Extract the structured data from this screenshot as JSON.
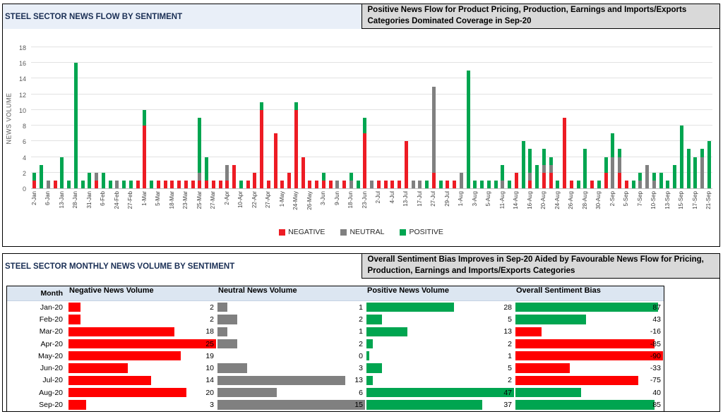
{
  "panel1": {
    "title": "STEEL SECTOR NEWS FLOW BY SENTIMENT",
    "headline": "Positive News Flow for Product Pricing, Production, Earnings and Imports/Exports Categories Dominated Coverage in Sep-20",
    "y_axis_label": "NEWS VOLUME"
  },
  "panel2": {
    "title": "STEEL SECTOR MONTHLY NEWS VOLUME BY SENTIMENT",
    "headline": "Overall Sentiment Bias Improves in Sep-20 Aided by Favourable News Flow for Pricing, Production, Earnings and Imports/Exports Categories"
  },
  "legend": [
    {
      "label": "NEGATIVE",
      "color": "#ed1c24"
    },
    {
      "label": "NEUTRAL",
      "color": "#808080"
    },
    {
      "label": "POSITIVE",
      "color": "#00a550"
    }
  ],
  "colors": {
    "negative": "#ed1c24",
    "neutral": "#808080",
    "positive": "#00a550",
    "table_negative": "#ff0000",
    "table_neutral": "#808080",
    "table_positive": "#00a550",
    "bias_positive": "#00a550",
    "bias_negative": "#ff0000"
  },
  "chart_data": [
    {
      "type": "bar",
      "stacked": true,
      "title": "STEEL SECTOR NEWS FLOW BY SENTIMENT",
      "xlabel": "",
      "ylabel": "NEWS VOLUME",
      "ylim": [
        0,
        18
      ],
      "ytick_step": 2,
      "grid": true,
      "legend_position": "bottom",
      "categories": [
        "2-Jan",
        "",
        "6-Jan",
        "",
        "13-Jan",
        "",
        "28-Jan",
        "",
        "31-Jan",
        "",
        "6-Feb",
        "",
        "24-Feb",
        "",
        "27-Feb",
        "",
        "1-Mar",
        "",
        "5-Mar",
        "",
        "18-Mar",
        "",
        "23-Mar",
        "",
        "25-Mar",
        "",
        "27-Mar",
        "",
        "2-Apr",
        "",
        "10-Apr",
        "",
        "22-Apr",
        "",
        "27-Apr",
        "",
        "1-May",
        "",
        "24-May",
        "",
        "26-May",
        "",
        "3-Jun",
        "",
        "9-Jun",
        "",
        "18-Jun",
        "",
        "23-Jun",
        "",
        "2-Jul",
        "",
        "4-Jul",
        "",
        "13-Jul",
        "",
        "17-Jul",
        "",
        "27-Jul",
        "",
        "29-Jul",
        "",
        "1-Aug",
        "",
        "3-Aug",
        "",
        "5-Aug",
        "",
        "11-Aug",
        "",
        "14-Aug",
        "",
        "16-Aug",
        "",
        "20-Aug",
        "",
        "24-Aug",
        "",
        "26-Aug",
        "",
        "28-Aug",
        "",
        "30-Aug",
        "",
        "2-Sep",
        "",
        "5-Sep",
        "",
        "7-Sep",
        "",
        "10-Sep",
        "",
        "13-Sep",
        "",
        "15-Sep",
        "",
        "17-Sep",
        "",
        "21-Sep"
      ],
      "series": [
        {
          "name": "NEGATIVE",
          "color": "#ed1c24",
          "values": [
            1,
            0,
            0,
            1,
            0,
            0,
            0,
            0,
            0,
            1,
            0,
            0,
            0,
            0,
            0,
            1,
            8,
            0,
            1,
            1,
            1,
            1,
            1,
            1,
            1,
            1,
            1,
            1,
            1,
            3,
            0,
            1,
            2,
            10,
            1,
            7,
            1,
            2,
            10,
            4,
            1,
            1,
            1,
            1,
            0,
            1,
            0,
            0,
            7,
            0,
            1,
            1,
            1,
            1,
            6,
            0,
            0,
            0,
            2,
            0,
            1,
            1,
            0,
            0,
            0,
            0,
            0,
            0,
            0,
            0,
            2,
            0,
            1,
            0,
            2,
            2,
            0,
            9,
            1,
            0,
            0,
            1,
            0,
            2,
            0,
            2,
            1,
            0,
            0,
            0,
            0,
            0,
            0,
            0,
            0,
            0,
            0,
            0,
            0
          ]
        },
        {
          "name": "NEUTRAL",
          "color": "#808080",
          "values": [
            0,
            0,
            1,
            0,
            0,
            0,
            0,
            0,
            0,
            1,
            0,
            0,
            1,
            0,
            0,
            0,
            0,
            0,
            0,
            0,
            0,
            0,
            0,
            0,
            1,
            0,
            0,
            0,
            2,
            0,
            0,
            0,
            0,
            0,
            0,
            0,
            0,
            0,
            0,
            0,
            0,
            0,
            0,
            0,
            1,
            0,
            1,
            0,
            0,
            1,
            0,
            0,
            0,
            0,
            0,
            1,
            1,
            0,
            11,
            0,
            0,
            0,
            2,
            0,
            0,
            0,
            0,
            0,
            1,
            0,
            0,
            0,
            1,
            0,
            1,
            1,
            0,
            0,
            0,
            0,
            0,
            0,
            0,
            0,
            4,
            2,
            0,
            0,
            1,
            3,
            1,
            0,
            0,
            0,
            0,
            0,
            0,
            4,
            0
          ]
        },
        {
          "name": "POSITIVE",
          "color": "#00a550",
          "values": [
            1,
            3,
            0,
            0,
            4,
            1,
            16,
            1,
            2,
            0,
            2,
            1,
            0,
            1,
            1,
            0,
            2,
            1,
            0,
            0,
            0,
            0,
            0,
            0,
            7,
            3,
            0,
            0,
            0,
            0,
            1,
            0,
            0,
            1,
            0,
            0,
            0,
            0,
            1,
            0,
            0,
            0,
            1,
            0,
            0,
            0,
            1,
            1,
            2,
            0,
            0,
            0,
            0,
            0,
            0,
            0,
            0,
            1,
            0,
            1,
            0,
            0,
            0,
            15,
            1,
            1,
            1,
            1,
            2,
            1,
            0,
            6,
            3,
            3,
            2,
            1,
            1,
            0,
            0,
            1,
            5,
            0,
            1,
            2,
            3,
            1,
            0,
            1,
            1,
            0,
            1,
            2,
            1,
            3,
            8,
            5,
            4,
            1,
            6
          ]
        }
      ]
    },
    {
      "type": "table",
      "title": "STEEL SECTOR MONTHLY NEWS VOLUME BY SENTIMENT",
      "columns": [
        "Month",
        "Negative News Volume",
        "Neutral News Volume",
        "Positive News Volume",
        "Overall Sentiment Bias"
      ],
      "rows": [
        {
          "month": "Jan-20",
          "negative": 2,
          "neutral": 1,
          "positive": 28,
          "bias": 87
        },
        {
          "month": "Feb-20",
          "negative": 2,
          "neutral": 2,
          "positive": 5,
          "bias": 43
        },
        {
          "month": "Mar-20",
          "negative": 18,
          "neutral": 1,
          "positive": 13,
          "bias": -16
        },
        {
          "month": "Apr-20",
          "negative": 25,
          "neutral": 2,
          "positive": 2,
          "bias": -85
        },
        {
          "month": "May-20",
          "negative": 19,
          "neutral": 0,
          "positive": 1,
          "bias": -90
        },
        {
          "month": "Jun-20",
          "negative": 10,
          "neutral": 3,
          "positive": 5,
          "bias": -33
        },
        {
          "month": "Jul-20",
          "negative": 14,
          "neutral": 13,
          "positive": 2,
          "bias": -75
        },
        {
          "month": "Aug-20",
          "negative": 20,
          "neutral": 6,
          "positive": 47,
          "bias": 40
        },
        {
          "month": "Sep-20",
          "negative": 3,
          "neutral": 15,
          "positive": 37,
          "bias": 85
        }
      ],
      "bar_scales": {
        "negative_max": 25,
        "neutral_max": 15,
        "positive_max": 47,
        "bias_max": 90
      }
    }
  ]
}
